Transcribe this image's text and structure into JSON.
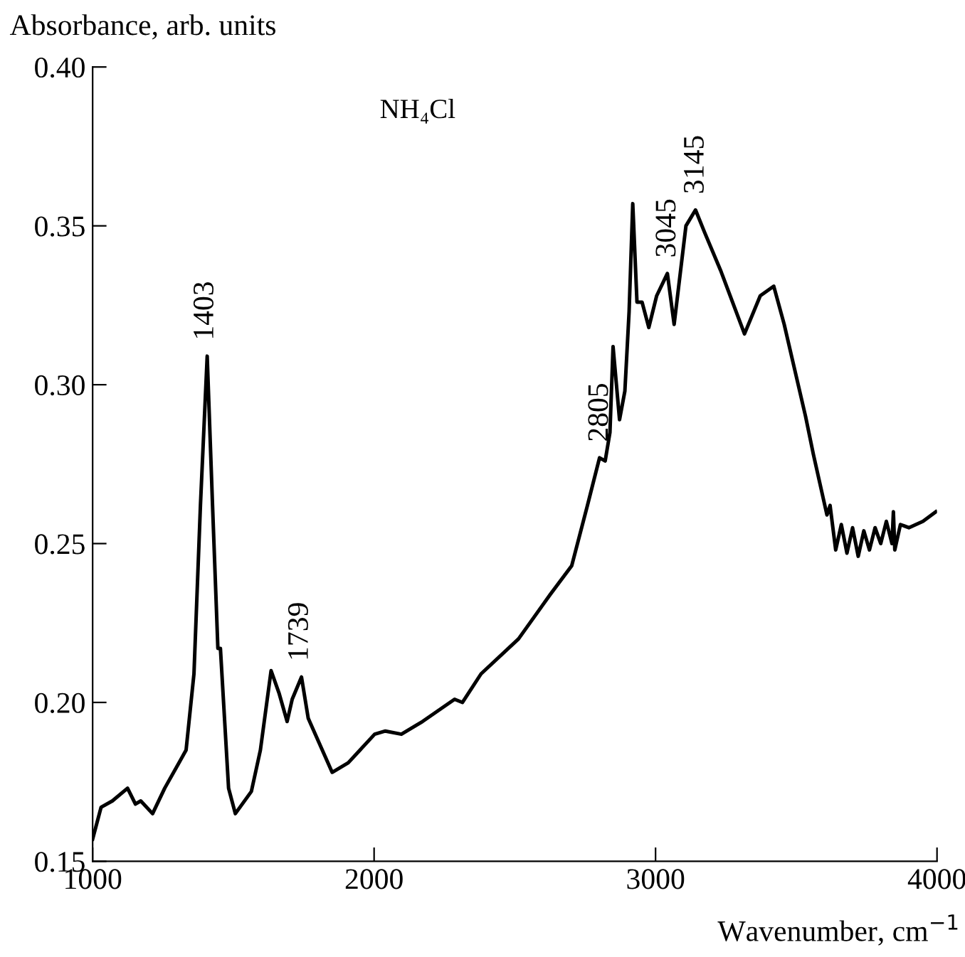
{
  "chart_data": {
    "type": "line",
    "title": "NH₄Cl",
    "xlabel": "Wavenumber, cm$^{−1}$",
    "ylabel": "Absorbance, arb. units",
    "xlim": [
      1000,
      4000
    ],
    "ylim": [
      0.15,
      0.4
    ],
    "xticks": [
      1000,
      2000,
      3000,
      4000
    ],
    "yticks": [
      0.15,
      {
        "value": 0.2,
        "label": "0.20"
      },
      0.25,
      {
        "value": 0.3,
        "label": "0.30"
      },
      0.35,
      {
        "value": 0.4,
        "label": "0.40"
      }
    ],
    "grid": false,
    "legend": false,
    "marker": "none",
    "line_style": "solid",
    "series": [
      {
        "color": "#000000",
        "x": [
          1000,
          1030,
          1070,
          1124,
          1152,
          1171,
          1213,
          1256,
          1332,
          1360,
          1383,
          1407,
          1426,
          1445,
          1454,
          1483,
          1507,
          1564,
          1596,
          1634,
          1662,
          1691,
          1709,
          1742,
          1766,
          1851,
          1908,
          2002,
          2040,
          2097,
          2172,
          2286,
          2314,
          2380,
          2513,
          2626,
          2702,
          2758,
          2801,
          2821,
          2838,
          2849,
          2872,
          2891,
          2906,
          2919,
          2934,
          2952,
          2976,
          3004,
          3042,
          3066,
          3108,
          3142,
          3174,
          3231,
          3316,
          3372,
          3420,
          3457,
          3533,
          3561,
          3609,
          3620,
          3640,
          3660,
          3680,
          3700,
          3720,
          3740,
          3760,
          3780,
          3800,
          3820,
          3840,
          3845,
          3850,
          3870,
          3900,
          3950,
          3996
        ],
        "values": [
          0.157,
          0.167,
          0.169,
          0.173,
          0.168,
          0.169,
          0.165,
          0.173,
          0.185,
          0.209,
          0.262,
          0.309,
          0.262,
          0.217,
          0.217,
          0.173,
          0.165,
          0.172,
          0.185,
          0.21,
          0.203,
          0.194,
          0.201,
          0.208,
          0.195,
          0.178,
          0.181,
          0.19,
          0.191,
          0.19,
          0.194,
          0.201,
          0.2,
          0.209,
          0.22,
          0.234,
          0.243,
          0.262,
          0.277,
          0.276,
          0.285,
          0.312,
          0.289,
          0.298,
          0.323,
          0.357,
          0.326,
          0.326,
          0.318,
          0.328,
          0.335,
          0.319,
          0.35,
          0.355,
          0.348,
          0.336,
          0.316,
          0.328,
          0.331,
          0.319,
          0.29,
          0.278,
          0.259,
          0.262,
          0.248,
          0.256,
          0.247,
          0.255,
          0.246,
          0.254,
          0.248,
          0.255,
          0.25,
          0.257,
          0.25,
          0.26,
          0.248,
          0.256,
          0.255,
          0.257,
          0.26
        ]
      }
    ],
    "annotations": [
      {
        "text": "1403",
        "x": 1403,
        "y": 0.309
      },
      {
        "text": "1739",
        "x": 1739,
        "y": 0.208
      },
      {
        "text": "2805",
        "x": 2805,
        "y": 0.277
      },
      {
        "text": "3045",
        "x": 3045,
        "y": 0.335
      },
      {
        "text": "3145",
        "x": 3145,
        "y": 0.355
      }
    ]
  }
}
